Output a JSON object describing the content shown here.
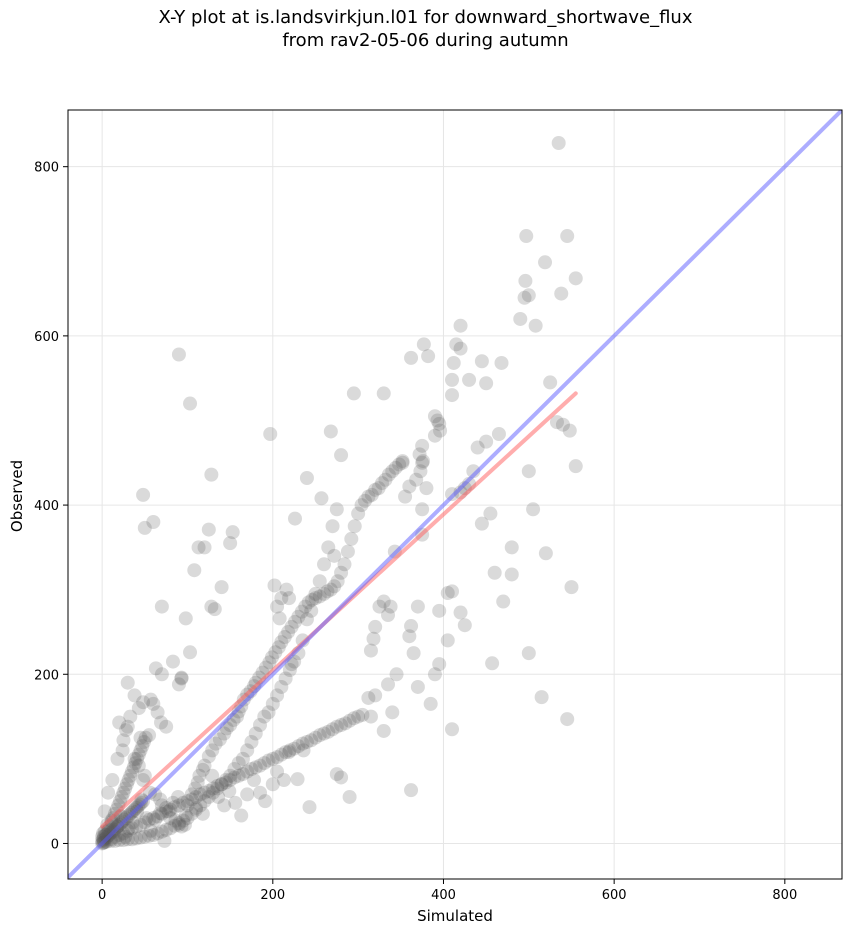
{
  "chart_data": {
    "type": "scatter",
    "title": "X-Y plot at is.landsvirkjun.l01 for downward_shortwave_flux",
    "subtitle": "from rav2-05-06 during autumn",
    "xlabel": "Simulated",
    "ylabel": "Observed",
    "xlim": [
      -40,
      867
    ],
    "ylim": [
      -42,
      867
    ],
    "x_ticks": [
      0,
      200,
      400,
      600,
      800
    ],
    "y_ticks": [
      0,
      200,
      400,
      600,
      800
    ],
    "x_tick_labels": [
      "0",
      "200",
      "400",
      "600",
      "800"
    ],
    "y_tick_labels": [
      "0",
      "200",
      "400",
      "600",
      "800"
    ],
    "grid": true,
    "point_color": "#555555",
    "point_opacity": 0.22,
    "identity_line": {
      "color": "#5b5bff",
      "x": [
        -40,
        867
      ],
      "y": [
        -40,
        867
      ]
    },
    "fit_line": {
      "color": "#ff5b5b",
      "x": [
        0,
        555
      ],
      "y": [
        20,
        532
      ]
    },
    "points": [
      [
        535,
        828
      ],
      [
        497,
        718
      ],
      [
        545,
        718
      ],
      [
        519,
        687
      ],
      [
        555,
        668
      ],
      [
        496,
        665
      ],
      [
        538,
        650
      ],
      [
        500,
        648
      ],
      [
        495,
        645
      ],
      [
        490,
        620
      ],
      [
        508,
        612
      ],
      [
        420,
        612
      ],
      [
        90,
        578
      ],
      [
        377,
        590
      ],
      [
        382,
        576
      ],
      [
        362,
        574
      ],
      [
        420,
        585
      ],
      [
        415,
        590
      ],
      [
        412,
        568
      ],
      [
        445,
        570
      ],
      [
        468,
        568
      ],
      [
        430,
        548
      ],
      [
        410,
        548
      ],
      [
        450,
        544
      ],
      [
        525,
        545
      ],
      [
        103,
        520
      ],
      [
        295,
        532
      ],
      [
        330,
        532
      ],
      [
        410,
        530
      ],
      [
        540,
        495
      ],
      [
        548,
        488
      ],
      [
        533,
        498
      ],
      [
        500,
        440
      ],
      [
        505,
        395
      ],
      [
        555,
        446
      ],
      [
        410,
        413
      ],
      [
        420,
        415
      ],
      [
        425,
        420
      ],
      [
        430,
        425
      ],
      [
        435,
        440
      ],
      [
        440,
        468
      ],
      [
        450,
        475
      ],
      [
        465,
        484
      ],
      [
        455,
        390
      ],
      [
        445,
        378
      ],
      [
        460,
        320
      ],
      [
        470,
        286
      ],
      [
        480,
        350
      ],
      [
        480,
        318
      ],
      [
        520,
        343
      ],
      [
        500,
        225
      ],
      [
        515,
        173
      ],
      [
        545,
        147
      ],
      [
        550,
        303
      ],
      [
        457,
        213
      ],
      [
        420,
        273
      ],
      [
        425,
        258
      ],
      [
        405,
        296
      ],
      [
        410,
        298
      ],
      [
        395,
        275
      ],
      [
        390,
        200
      ],
      [
        395,
        212
      ],
      [
        405,
        240
      ],
      [
        410,
        135
      ],
      [
        385,
        165
      ],
      [
        370,
        185
      ],
      [
        365,
        225
      ],
      [
        360,
        245
      ],
      [
        362,
        257
      ],
      [
        370,
        280
      ],
      [
        362,
        63
      ],
      [
        390,
        505
      ],
      [
        393,
        500
      ],
      [
        396,
        488
      ],
      [
        395,
        496
      ],
      [
        390,
        482
      ],
      [
        375,
        470
      ],
      [
        372,
        460
      ],
      [
        375,
        450
      ],
      [
        376,
        452
      ],
      [
        373,
        440
      ],
      [
        380,
        420
      ],
      [
        368,
        430
      ],
      [
        360,
        422
      ],
      [
        375,
        395
      ],
      [
        375,
        365
      ],
      [
        355,
        410
      ],
      [
        352,
        452
      ],
      [
        343,
        345
      ],
      [
        338,
        280
      ],
      [
        335,
        270
      ],
      [
        330,
        286
      ],
      [
        325,
        280
      ],
      [
        320,
        256
      ],
      [
        318,
        242
      ],
      [
        315,
        228
      ],
      [
        312,
        172
      ],
      [
        315,
        150
      ],
      [
        320,
        175
      ],
      [
        330,
        133
      ],
      [
        340,
        155
      ],
      [
        335,
        188
      ],
      [
        345,
        200
      ],
      [
        280,
        459
      ],
      [
        268,
        487
      ],
      [
        257,
        408
      ],
      [
        240,
        432
      ],
      [
        226,
        384
      ],
      [
        222,
        212
      ],
      [
        210,
        290
      ],
      [
        205,
        280
      ],
      [
        202,
        305
      ],
      [
        197,
        484
      ],
      [
        208,
        266
      ],
      [
        216,
        300
      ],
      [
        219,
        290
      ],
      [
        128,
        436
      ],
      [
        128,
        280
      ],
      [
        132,
        277
      ],
      [
        140,
        303
      ],
      [
        150,
        355
      ],
      [
        153,
        368
      ],
      [
        120,
        350
      ],
      [
        125,
        371
      ],
      [
        113,
        350
      ],
      [
        93,
        196
      ],
      [
        98,
        266
      ],
      [
        103,
        226
      ],
      [
        108,
        323
      ],
      [
        60,
        380
      ],
      [
        48,
        412
      ],
      [
        50,
        373
      ],
      [
        70,
        280
      ],
      [
        83,
        215
      ],
      [
        90,
        188
      ],
      [
        93,
        195
      ],
      [
        70,
        200
      ],
      [
        60,
        165
      ],
      [
        65,
        155
      ],
      [
        69,
        143
      ],
      [
        75,
        138
      ],
      [
        55,
        128
      ],
      [
        45,
        125
      ],
      [
        30,
        190
      ],
      [
        25,
        122
      ],
      [
        20,
        143
      ],
      [
        30,
        138
      ],
      [
        38,
        100
      ],
      [
        43,
        92
      ],
      [
        48,
        75
      ],
      [
        50,
        80
      ],
      [
        56,
        60
      ],
      [
        62,
        58
      ],
      [
        68,
        52
      ],
      [
        70,
        45
      ],
      [
        75,
        42
      ],
      [
        78,
        38
      ],
      [
        80,
        30
      ],
      [
        86,
        27
      ],
      [
        90,
        22
      ],
      [
        93,
        20
      ],
      [
        98,
        33
      ],
      [
        100,
        45
      ],
      [
        105,
        58
      ],
      [
        109,
        65
      ],
      [
        112,
        72
      ],
      [
        114,
        80
      ],
      [
        118,
        87
      ],
      [
        120,
        92
      ],
      [
        125,
        103
      ],
      [
        129,
        110
      ],
      [
        133,
        118
      ],
      [
        138,
        123
      ],
      [
        143,
        130
      ],
      [
        146,
        136
      ],
      [
        150,
        140
      ],
      [
        154,
        146
      ],
      [
        158,
        150
      ],
      [
        160,
        156
      ],
      [
        163,
        162
      ],
      [
        166,
        170
      ],
      [
        170,
        176
      ],
      [
        174,
        180
      ],
      [
        178,
        186
      ],
      [
        180,
        190
      ],
      [
        184,
        196
      ],
      [
        188,
        202
      ],
      [
        192,
        208
      ],
      [
        196,
        214
      ],
      [
        199,
        220
      ],
      [
        203,
        226
      ],
      [
        207,
        232
      ],
      [
        210,
        238
      ],
      [
        214,
        244
      ],
      [
        218,
        250
      ],
      [
        222,
        256
      ],
      [
        226,
        262
      ],
      [
        230,
        268
      ],
      [
        234,
        274
      ],
      [
        238,
        280
      ],
      [
        242,
        285
      ],
      [
        246,
        288
      ],
      [
        250,
        290
      ],
      [
        255,
        292
      ],
      [
        260,
        295
      ],
      [
        264,
        298
      ],
      [
        268,
        300
      ],
      [
        272,
        304
      ],
      [
        276,
        310
      ],
      [
        280,
        320
      ],
      [
        284,
        330
      ],
      [
        288,
        345
      ],
      [
        292,
        360
      ],
      [
        296,
        375
      ],
      [
        300,
        390
      ],
      [
        304,
        400
      ],
      [
        308,
        405
      ],
      [
        312,
        410
      ],
      [
        316,
        412
      ],
      [
        320,
        418
      ],
      [
        324,
        420
      ],
      [
        328,
        426
      ],
      [
        332,
        430
      ],
      [
        336,
        436
      ],
      [
        340,
        440
      ],
      [
        344,
        444
      ],
      [
        348,
        448
      ],
      [
        352,
        450
      ],
      [
        275,
        395
      ],
      [
        270,
        375
      ],
      [
        272,
        340
      ],
      [
        265,
        350
      ],
      [
        260,
        330
      ],
      [
        255,
        310
      ],
      [
        250,
        295
      ],
      [
        245,
        275
      ],
      [
        240,
        265
      ],
      [
        235,
        240
      ],
      [
        230,
        225
      ],
      [
        225,
        215
      ],
      [
        220,
        205
      ],
      [
        215,
        195
      ],
      [
        210,
        185
      ],
      [
        205,
        175
      ],
      [
        200,
        165
      ],
      [
        195,
        155
      ],
      [
        190,
        150
      ],
      [
        185,
        140
      ],
      [
        180,
        130
      ],
      [
        175,
        120
      ],
      [
        170,
        110
      ],
      [
        165,
        100
      ],
      [
        160,
        95
      ],
      [
        155,
        88
      ],
      [
        150,
        80
      ],
      [
        145,
        75
      ],
      [
        140,
        70
      ],
      [
        135,
        65
      ],
      [
        130,
        60
      ],
      [
        125,
        55
      ],
      [
        120,
        50
      ],
      [
        115,
        45
      ],
      [
        110,
        40
      ],
      [
        105,
        35
      ],
      [
        100,
        30
      ],
      [
        95,
        27
      ],
      [
        90,
        24
      ],
      [
        85,
        21
      ],
      [
        80,
        18
      ],
      [
        75,
        16
      ],
      [
        70,
        14
      ],
      [
        65,
        12
      ],
      [
        60,
        10
      ],
      [
        55,
        9
      ],
      [
        50,
        8
      ],
      [
        45,
        7
      ],
      [
        40,
        6
      ],
      [
        35,
        5
      ],
      [
        30,
        5
      ],
      [
        25,
        4
      ],
      [
        20,
        4
      ],
      [
        15,
        3
      ],
      [
        10,
        3
      ],
      [
        5,
        2
      ],
      [
        3,
        2
      ],
      [
        2,
        1
      ],
      [
        1,
        1
      ],
      [
        0,
        0
      ],
      [
        2,
        4
      ],
      [
        4,
        6
      ],
      [
        6,
        8
      ],
      [
        8,
        10
      ],
      [
        10,
        12
      ],
      [
        12,
        14
      ],
      [
        14,
        16
      ],
      [
        16,
        18
      ],
      [
        18,
        20
      ],
      [
        20,
        22
      ],
      [
        22,
        24
      ],
      [
        24,
        26
      ],
      [
        26,
        28
      ],
      [
        28,
        30
      ],
      [
        30,
        32
      ],
      [
        32,
        34
      ],
      [
        34,
        36
      ],
      [
        36,
        38
      ],
      [
        38,
        40
      ],
      [
        40,
        42
      ],
      [
        42,
        44
      ],
      [
        44,
        46
      ],
      [
        46,
        48
      ],
      [
        48,
        50
      ],
      [
        5,
        10
      ],
      [
        7,
        15
      ],
      [
        9,
        20
      ],
      [
        11,
        25
      ],
      [
        13,
        30
      ],
      [
        15,
        35
      ],
      [
        17,
        40
      ],
      [
        19,
        45
      ],
      [
        21,
        50
      ],
      [
        23,
        55
      ],
      [
        25,
        60
      ],
      [
        27,
        65
      ],
      [
        29,
        70
      ],
      [
        31,
        75
      ],
      [
        33,
        80
      ],
      [
        35,
        85
      ],
      [
        37,
        90
      ],
      [
        39,
        95
      ],
      [
        41,
        100
      ],
      [
        43,
        105
      ],
      [
        45,
        110
      ],
      [
        47,
        115
      ],
      [
        49,
        120
      ],
      [
        51,
        125
      ],
      [
        10,
        5
      ],
      [
        15,
        8
      ],
      [
        20,
        10
      ],
      [
        25,
        12
      ],
      [
        30,
        15
      ],
      [
        35,
        18
      ],
      [
        40,
        20
      ],
      [
        45,
        22
      ],
      [
        50,
        25
      ],
      [
        55,
        28
      ],
      [
        60,
        30
      ],
      [
        65,
        32
      ],
      [
        70,
        35
      ],
      [
        75,
        38
      ],
      [
        80,
        40
      ],
      [
        85,
        43
      ],
      [
        90,
        45
      ],
      [
        95,
        48
      ],
      [
        100,
        50
      ],
      [
        105,
        52
      ],
      [
        110,
        55
      ],
      [
        115,
        58
      ],
      [
        120,
        60
      ],
      [
        125,
        62
      ],
      [
        130,
        65
      ],
      [
        135,
        68
      ],
      [
        140,
        70
      ],
      [
        145,
        72
      ],
      [
        150,
        75
      ],
      [
        155,
        78
      ],
      [
        160,
        80
      ],
      [
        165,
        82
      ],
      [
        170,
        85
      ],
      [
        175,
        88
      ],
      [
        180,
        90
      ],
      [
        185,
        92
      ],
      [
        190,
        95
      ],
      [
        195,
        98
      ],
      [
        200,
        100
      ],
      [
        205,
        102
      ],
      [
        210,
        105
      ],
      [
        215,
        108
      ],
      [
        220,
        110
      ],
      [
        225,
        112
      ],
      [
        230,
        115
      ],
      [
        235,
        118
      ],
      [
        240,
        120
      ],
      [
        245,
        122
      ],
      [
        250,
        125
      ],
      [
        255,
        128
      ],
      [
        260,
        130
      ],
      [
        265,
        132
      ],
      [
        270,
        135
      ],
      [
        275,
        138
      ],
      [
        280,
        140
      ],
      [
        285,
        142
      ],
      [
        290,
        145
      ],
      [
        295,
        148
      ],
      [
        300,
        150
      ],
      [
        305,
        152
      ],
      [
        290,
        55
      ],
      [
        280,
        78
      ],
      [
        275,
        82
      ],
      [
        243,
        43
      ],
      [
        236,
        110
      ],
      [
        229,
        76
      ],
      [
        219,
        108
      ],
      [
        213,
        75
      ],
      [
        205,
        85
      ],
      [
        200,
        70
      ],
      [
        191,
        50
      ],
      [
        185,
        60
      ],
      [
        178,
        75
      ],
      [
        170,
        58
      ],
      [
        163,
        33
      ],
      [
        156,
        48
      ],
      [
        149,
        62
      ],
      [
        143,
        45
      ],
      [
        136,
        55
      ],
      [
        129,
        80
      ],
      [
        118,
        35
      ],
      [
        110,
        42
      ],
      [
        97,
        22
      ],
      [
        89,
        55
      ],
      [
        83,
        48
      ],
      [
        73,
        3
      ],
      [
        68,
        36
      ],
      [
        62,
        28
      ],
      [
        57,
        15
      ],
      [
        52,
        30
      ],
      [
        46,
        52
      ],
      [
        41,
        38
      ],
      [
        36,
        25
      ],
      [
        31,
        18
      ],
      [
        27,
        8
      ],
      [
        22,
        32
      ],
      [
        18,
        20
      ],
      [
        14,
        14
      ],
      [
        11,
        27
      ],
      [
        8,
        16
      ],
      [
        6,
        22
      ],
      [
        4,
        10
      ],
      [
        3,
        14
      ],
      [
        2,
        8
      ],
      [
        1,
        5
      ],
      [
        0,
        3
      ],
      [
        0,
        8
      ],
      [
        1,
        12
      ],
      [
        63,
        207
      ],
      [
        57,
        170
      ],
      [
        48,
        167
      ],
      [
        43,
        160
      ],
      [
        38,
        175
      ],
      [
        33,
        150
      ],
      [
        28,
        134
      ],
      [
        24,
        110
      ],
      [
        18,
        100
      ],
      [
        12,
        75
      ],
      [
        7,
        60
      ],
      [
        3,
        38
      ]
    ]
  }
}
